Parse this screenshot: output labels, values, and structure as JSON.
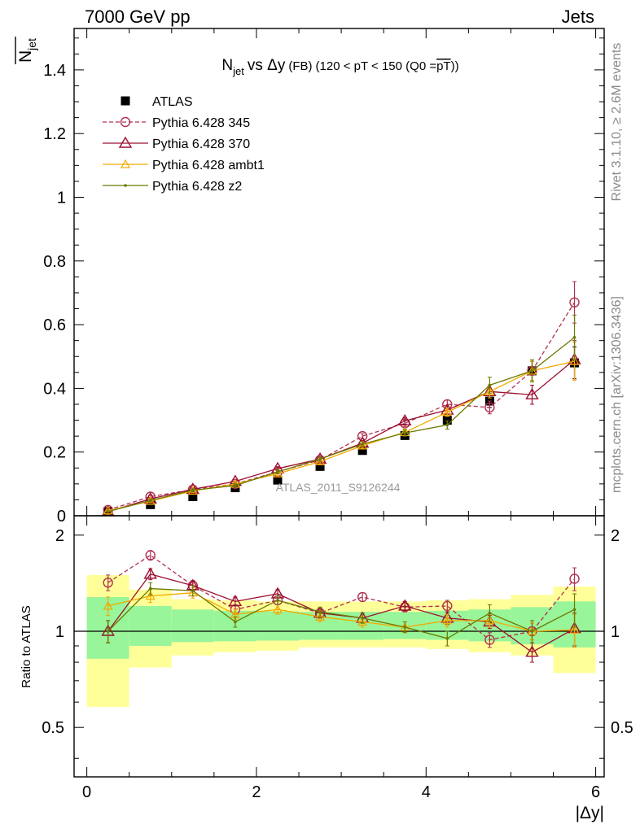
{
  "header": {
    "left": "7000 GeV pp",
    "right": "Jets"
  },
  "sidebar": {
    "rivet": "Rivet 3.1.10, ≥ 2.6M events",
    "mcplots": "mcplots.cern.ch [arXiv:1306.3436]"
  },
  "watermark": "ATLAS_2011_S9126244",
  "chart_data": [
    {
      "type": "scatter",
      "panel": "main",
      "title": {
        "quantity": "N",
        "quantity_sub": "jet",
        "vs": "vs Δy",
        "qualifier": "(FB)",
        "cut": "(120 < pT < 150 (Q0 =",
        "cut_overline": "pT",
        "cut_end": "))"
      },
      "ylabel": "N",
      "ylabel_sub": "jet",
      "ylabel_overline": true,
      "xlim": [
        -0.15,
        6.1
      ],
      "ylim": [
        0,
        1.53
      ],
      "yticks": [
        0,
        0.2,
        0.4,
        0.6,
        0.8,
        1,
        1.2,
        1.4
      ],
      "ytick_labels": [
        "0",
        "0.2",
        "0.4",
        "0.6",
        "0.8",
        "1",
        "1.2",
        "1.4"
      ],
      "x": [
        0.25,
        0.75,
        1.25,
        1.75,
        2.25,
        2.75,
        3.25,
        3.75,
        4.25,
        4.75,
        5.25,
        5.75
      ],
      "legend_position": "top-left",
      "series": [
        {
          "name": "ATLAS",
          "color": "#000000",
          "marker": "square",
          "line": "none",
          "values": [
            0.013,
            0.035,
            0.06,
            0.088,
            0.112,
            0.155,
            0.205,
            0.252,
            0.3,
            0.36,
            0.455,
            0.48
          ],
          "errors": [
            0.002,
            0.003,
            0.004,
            0.005,
            0.006,
            0.007,
            0.008,
            0.01,
            0.012,
            0.02,
            0.03,
            0.05
          ]
        },
        {
          "name": "Pythia 6.428 345",
          "color": "#b03050",
          "marker": "circle",
          "line": "dashed",
          "values": [
            0.018,
            0.06,
            0.082,
            0.1,
            0.138,
            0.175,
            0.25,
            0.29,
            0.35,
            0.34,
            0.455,
            0.67
          ],
          "errors": [
            0.002,
            0.004,
            0.005,
            0.005,
            0.006,
            0.007,
            0.008,
            0.01,
            0.013,
            0.02,
            0.03,
            0.065
          ]
        },
        {
          "name": "Pythia 6.428 370",
          "color": "#9b1030",
          "marker": "triangle",
          "line": "solid",
          "values": [
            0.013,
            0.053,
            0.083,
            0.108,
            0.148,
            0.178,
            0.228,
            0.298,
            0.332,
            0.39,
            0.38,
            0.49
          ],
          "errors": [
            0.002,
            0.004,
            0.005,
            0.005,
            0.006,
            0.007,
            0.008,
            0.01,
            0.013,
            0.02,
            0.03,
            0.06
          ]
        },
        {
          "name": "Pythia 6.428 ambt1",
          "color": "#f2a900",
          "marker": "triangle-small",
          "line": "solid",
          "values": [
            0.016,
            0.046,
            0.078,
            0.1,
            0.132,
            0.17,
            0.22,
            0.262,
            0.325,
            0.39,
            0.455,
            0.485
          ],
          "errors": [
            0.002,
            0.004,
            0.005,
            0.005,
            0.006,
            0.007,
            0.008,
            0.01,
            0.013,
            0.02,
            0.03,
            0.06
          ]
        },
        {
          "name": "Pythia 6.428 z2",
          "color": "#6b7a00",
          "marker": "dot",
          "line": "solid",
          "values": [
            0.013,
            0.048,
            0.08,
            0.095,
            0.138,
            0.178,
            0.225,
            0.26,
            0.285,
            0.41,
            0.455,
            0.56
          ],
          "errors": [
            0.002,
            0.004,
            0.005,
            0.005,
            0.006,
            0.007,
            0.008,
            0.01,
            0.013,
            0.025,
            0.035,
            0.07
          ]
        }
      ]
    },
    {
      "type": "scatter",
      "panel": "ratio",
      "ylabel": "Ratio to ATLAS",
      "xlabel": "|Δy|",
      "xlim": [
        -0.15,
        6.1
      ],
      "xticks": [
        0,
        2,
        4,
        6
      ],
      "xtick_labels": [
        "0",
        "2",
        "4",
        "6"
      ],
      "ylim": [
        0.35,
        2.3
      ],
      "yticks": [
        0.5,
        1,
        2
      ],
      "ytick_labels": [
        "0.5",
        "1",
        "2"
      ],
      "reference_line": 1,
      "x": [
        0.25,
        0.75,
        1.25,
        1.75,
        2.25,
        2.75,
        3.25,
        3.75,
        4.25,
        4.75,
        5.25,
        5.75
      ],
      "band_edges": [
        0,
        0.5,
        1,
        1.5,
        2,
        2.5,
        3,
        3.5,
        4,
        4.5,
        5,
        5.5,
        6
      ],
      "band_green": {
        "color": "#99f599",
        "low": [
          0.82,
          0.9,
          0.925,
          0.93,
          0.935,
          0.94,
          0.94,
          0.945,
          0.94,
          0.93,
          0.91,
          0.89
        ],
        "high": [
          1.28,
          1.2,
          1.17,
          1.16,
          1.155,
          1.15,
          1.15,
          1.15,
          1.16,
          1.17,
          1.19,
          1.24
        ]
      },
      "band_yellow": {
        "color": "#ffff99",
        "low": [
          0.58,
          0.77,
          0.84,
          0.86,
          0.87,
          0.89,
          0.89,
          0.89,
          0.88,
          0.86,
          0.84,
          0.74
        ],
        "high": [
          1.5,
          1.35,
          1.26,
          1.25,
          1.24,
          1.24,
          1.24,
          1.24,
          1.25,
          1.26,
          1.3,
          1.38
        ]
      },
      "series": [
        {
          "name": "Pythia 6.428 345",
          "color": "#b03050",
          "marker": "circle",
          "line": "dashed",
          "values": [
            1.42,
            1.73,
            1.39,
            1.17,
            1.25,
            1.14,
            1.28,
            1.19,
            1.2,
            0.94,
            1.0,
            1.46
          ],
          "errors": [
            0.08,
            0.06,
            0.05,
            0.04,
            0.04,
            0.04,
            0.04,
            0.04,
            0.05,
            0.05,
            0.06,
            0.12
          ]
        },
        {
          "name": "Pythia 6.428 370",
          "color": "#9b1030",
          "marker": "triangle",
          "line": "solid",
          "values": [
            1.0,
            1.51,
            1.39,
            1.24,
            1.31,
            1.14,
            1.1,
            1.2,
            1.1,
            1.07,
            0.86,
            1.02
          ],
          "errors": [
            0.08,
            0.06,
            0.05,
            0.04,
            0.04,
            0.04,
            0.04,
            0.04,
            0.05,
            0.05,
            0.06,
            0.12
          ]
        },
        {
          "name": "Pythia 6.428 ambt1",
          "color": "#f2a900",
          "marker": "triangle-small",
          "line": "solid",
          "values": [
            1.2,
            1.29,
            1.32,
            1.13,
            1.17,
            1.11,
            1.07,
            1.03,
            1.08,
            1.08,
            1.0,
            1.01
          ],
          "errors": [
            0.08,
            0.06,
            0.05,
            0.04,
            0.04,
            0.04,
            0.04,
            0.04,
            0.05,
            0.05,
            0.06,
            0.12
          ]
        },
        {
          "name": "Pythia 6.428 z2",
          "color": "#6b7a00",
          "marker": "dot",
          "line": "solid",
          "values": [
            1.0,
            1.36,
            1.34,
            1.07,
            1.25,
            1.15,
            1.1,
            1.03,
            0.95,
            1.14,
            1.0,
            1.17
          ],
          "errors": [
            0.08,
            0.06,
            0.05,
            0.04,
            0.04,
            0.04,
            0.04,
            0.04,
            0.05,
            0.07,
            0.08,
            0.14
          ]
        }
      ]
    }
  ]
}
